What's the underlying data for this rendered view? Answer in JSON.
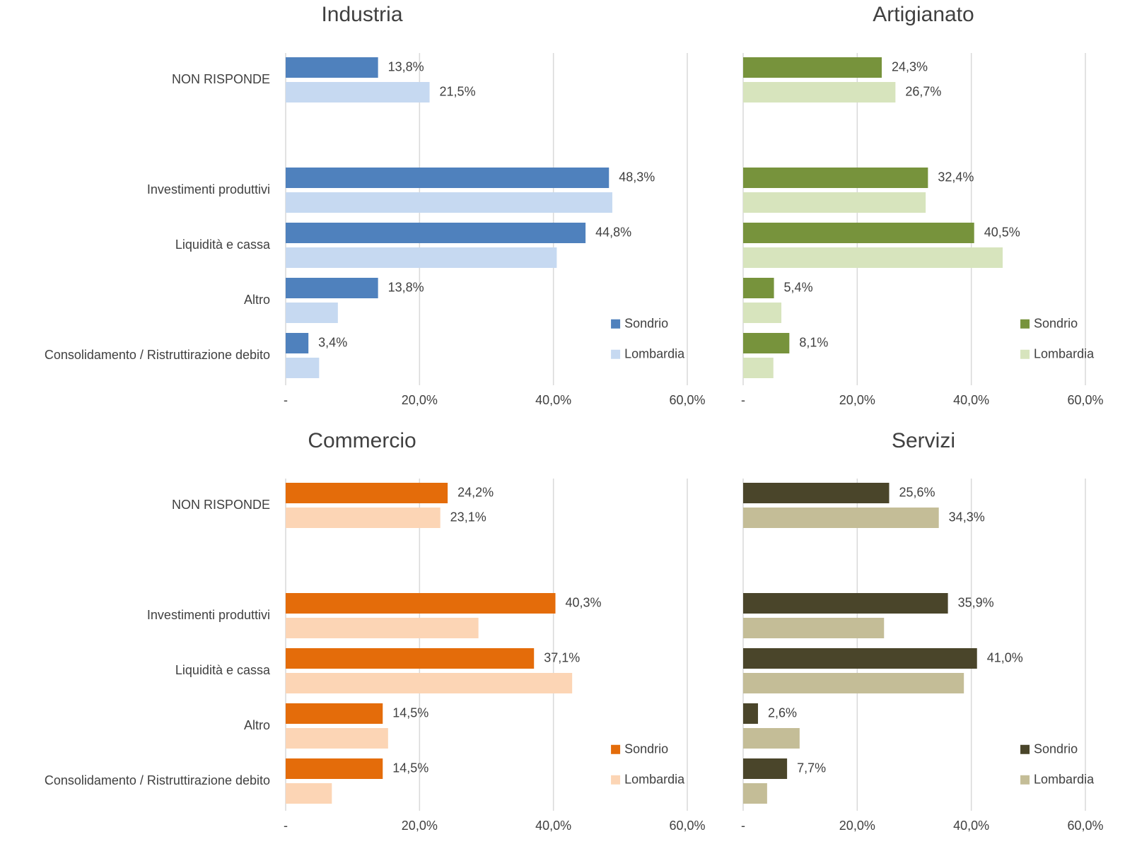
{
  "chart_data": [
    {
      "type": "bar",
      "title": "Industria",
      "categories": [
        "NON RISPONDE",
        null,
        "Investimenti produttivi",
        "Liquidità e cassa",
        "Altro",
        "Consolidamento / Ristruttirazione debito"
      ],
      "series": [
        {
          "name": "Sondrio",
          "color": "#4f81bd",
          "values": [
            13.8,
            null,
            48.3,
            44.8,
            13.8,
            3.4
          ],
          "value_labels": [
            "13,8%",
            null,
            "48,3%",
            "44,8%",
            "13,8%",
            "3,4%"
          ]
        },
        {
          "name": "Lombardia",
          "color": "#c6d9f1",
          "values": [
            21.5,
            null,
            48.8,
            40.5,
            7.8,
            5.0
          ],
          "value_labels": [
            "21,5%",
            null,
            null,
            null,
            null,
            null
          ]
        }
      ],
      "xlim": [
        0,
        60
      ],
      "xticks": [
        {
          "value": 0,
          "label": "-"
        },
        {
          "value": 20,
          "label": "20,0%"
        },
        {
          "value": 40,
          "label": "40,0%"
        },
        {
          "value": 60,
          "label": "60,0%"
        }
      ],
      "grid": true,
      "legend": "lower right"
    },
    {
      "type": "bar",
      "title": "Artigianato",
      "series": [
        {
          "name": "Sondrio",
          "color": "#77933c",
          "values": [
            24.3,
            null,
            32.4,
            40.5,
            5.4,
            8.1
          ],
          "value_labels": [
            "24,3%",
            null,
            "32,4%",
            "40,5%",
            "5,4%",
            "8,1%"
          ]
        },
        {
          "name": "Lombardia",
          "color": "#d7e4bd",
          "values": [
            26.7,
            null,
            32.0,
            45.5,
            6.7,
            5.3
          ],
          "value_labels": [
            "26,7%",
            null,
            null,
            null,
            null,
            null
          ]
        }
      ],
      "xlim": [
        0,
        60
      ],
      "xticks": [
        {
          "value": 0,
          "label": "-"
        },
        {
          "value": 20,
          "label": "20,0%"
        },
        {
          "value": 40,
          "label": "40,0%"
        },
        {
          "value": 60,
          "label": "60,0%"
        }
      ],
      "grid": true,
      "legend": "lower right"
    },
    {
      "type": "bar",
      "title": "Commercio",
      "categories": [
        "NON RISPONDE",
        null,
        "Investimenti produttivi",
        "Liquidità e cassa",
        "Altro",
        "Consolidamento / Ristruttirazione debito"
      ],
      "series": [
        {
          "name": "Sondrio",
          "color": "#e46c0a",
          "values": [
            24.2,
            null,
            40.3,
            37.1,
            14.5,
            14.5
          ],
          "value_labels": [
            "24,2%",
            null,
            "40,3%",
            "37,1%",
            "14,5%",
            "14,5%"
          ]
        },
        {
          "name": "Lombardia",
          "color": "#fcd5b5",
          "values": [
            23.1,
            null,
            28.8,
            42.8,
            15.3,
            6.9
          ],
          "value_labels": [
            "23,1%",
            null,
            null,
            null,
            null,
            null
          ]
        }
      ],
      "xlim": [
        0,
        60
      ],
      "xticks": [
        {
          "value": 0,
          "label": "-"
        },
        {
          "value": 20,
          "label": "20,0%"
        },
        {
          "value": 40,
          "label": "40,0%"
        },
        {
          "value": 60,
          "label": "60,0%"
        }
      ],
      "grid": true,
      "legend": "lower right"
    },
    {
      "type": "bar",
      "title": "Servizi",
      "series": [
        {
          "name": "Sondrio",
          "color": "#4a452a",
          "values": [
            25.6,
            null,
            35.9,
            41.0,
            2.6,
            7.7
          ],
          "value_labels": [
            "25,6%",
            null,
            "35,9%",
            "41,0%",
            "2,6%",
            "7,7%"
          ]
        },
        {
          "name": "Lombardia",
          "color": "#c4bd97",
          "values": [
            34.3,
            null,
            24.7,
            38.7,
            9.9,
            4.2
          ],
          "value_labels": [
            "34,3%",
            null,
            null,
            null,
            null,
            null
          ]
        }
      ],
      "xlim": [
        0,
        60
      ],
      "xticks": [
        {
          "value": 0,
          "label": "-"
        },
        {
          "value": 20,
          "label": "20,0%"
        },
        {
          "value": 40,
          "label": "40,0%"
        },
        {
          "value": 60,
          "label": "60,0%"
        }
      ],
      "grid": true,
      "legend": "lower right"
    }
  ]
}
